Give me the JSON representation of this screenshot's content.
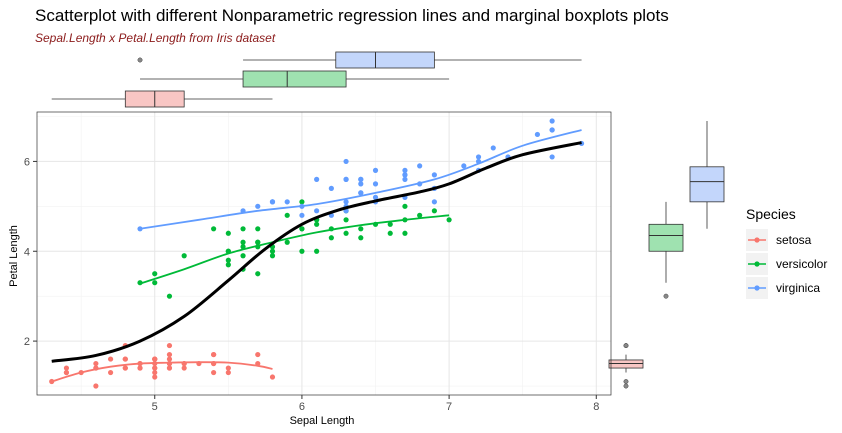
{
  "title": "Scatterplot with different Nonparametric regression lines and marginal boxplots plots",
  "subtitle": "Sepal.Length x Petal.Length from Iris dataset",
  "chart_data": {
    "type": "scatter",
    "xlabel": "Sepal Length",
    "ylabel": "Petal Length",
    "xlim": [
      4.2,
      8.1
    ],
    "ylim": [
      0.8,
      7.1
    ],
    "xticks": [
      "5",
      "6",
      "7",
      "8"
    ],
    "yticks": [
      "2",
      "4",
      "6"
    ],
    "grid": true,
    "legend": {
      "title": "Species",
      "position": "right"
    },
    "series": [
      {
        "name": "setosa",
        "color": "#F8766D",
        "points": [
          [
            5.1,
            1.4
          ],
          [
            4.9,
            1.4
          ],
          [
            4.7,
            1.3
          ],
          [
            4.6,
            1.5
          ],
          [
            5.0,
            1.4
          ],
          [
            5.4,
            1.7
          ],
          [
            4.6,
            1.4
          ],
          [
            5.0,
            1.5
          ],
          [
            4.4,
            1.4
          ],
          [
            4.9,
            1.5
          ],
          [
            5.4,
            1.5
          ],
          [
            4.8,
            1.6
          ],
          [
            4.8,
            1.4
          ],
          [
            4.3,
            1.1
          ],
          [
            5.8,
            1.2
          ],
          [
            5.7,
            1.5
          ],
          [
            5.4,
            1.3
          ],
          [
            5.1,
            1.4
          ],
          [
            5.7,
            1.7
          ],
          [
            5.1,
            1.5
          ],
          [
            5.4,
            1.7
          ],
          [
            5.1,
            1.5
          ],
          [
            4.6,
            1.0
          ],
          [
            5.1,
            1.7
          ],
          [
            4.8,
            1.9
          ],
          [
            5.0,
            1.6
          ],
          [
            5.0,
            1.6
          ],
          [
            5.2,
            1.5
          ],
          [
            5.2,
            1.4
          ],
          [
            4.7,
            1.6
          ],
          [
            4.8,
            1.6
          ],
          [
            5.4,
            1.5
          ],
          [
            5.2,
            1.5
          ],
          [
            5.5,
            1.4
          ],
          [
            4.9,
            1.5
          ],
          [
            5.0,
            1.2
          ],
          [
            5.5,
            1.3
          ],
          [
            4.9,
            1.4
          ],
          [
            4.4,
            1.3
          ],
          [
            5.1,
            1.5
          ],
          [
            5.0,
            1.3
          ],
          [
            4.5,
            1.3
          ],
          [
            4.4,
            1.3
          ],
          [
            5.0,
            1.6
          ],
          [
            5.1,
            1.9
          ],
          [
            4.8,
            1.4
          ],
          [
            5.1,
            1.6
          ],
          [
            4.6,
            1.4
          ],
          [
            5.3,
            1.5
          ],
          [
            5.0,
            1.4
          ]
        ],
        "trend": [
          [
            4.3,
            1.1
          ],
          [
            4.5,
            1.3
          ],
          [
            4.7,
            1.43
          ],
          [
            4.9,
            1.5
          ],
          [
            5.1,
            1.52
          ],
          [
            5.3,
            1.53
          ],
          [
            5.5,
            1.52
          ],
          [
            5.7,
            1.45
          ],
          [
            5.8,
            1.38
          ]
        ]
      },
      {
        "name": "versicolor",
        "color": "#00BA38",
        "points": [
          [
            7.0,
            4.7
          ],
          [
            6.4,
            4.5
          ],
          [
            6.9,
            4.9
          ],
          [
            5.5,
            4.0
          ],
          [
            6.5,
            4.6
          ],
          [
            5.7,
            4.5
          ],
          [
            6.3,
            4.7
          ],
          [
            4.9,
            3.3
          ],
          [
            6.6,
            4.6
          ],
          [
            5.2,
            3.9
          ],
          [
            5.0,
            3.5
          ],
          [
            5.9,
            4.2
          ],
          [
            6.0,
            4.0
          ],
          [
            6.1,
            4.7
          ],
          [
            5.6,
            3.6
          ],
          [
            6.7,
            4.4
          ],
          [
            5.6,
            4.5
          ],
          [
            5.8,
            4.1
          ],
          [
            6.2,
            4.5
          ],
          [
            5.6,
            3.9
          ],
          [
            5.9,
            4.8
          ],
          [
            6.1,
            4.0
          ],
          [
            6.3,
            4.9
          ],
          [
            6.1,
            4.7
          ],
          [
            6.4,
            4.3
          ],
          [
            6.6,
            4.4
          ],
          [
            6.8,
            4.8
          ],
          [
            6.7,
            5.0
          ],
          [
            6.0,
            4.5
          ],
          [
            5.7,
            3.5
          ],
          [
            5.5,
            3.8
          ],
          [
            5.5,
            3.7
          ],
          [
            5.8,
            3.9
          ],
          [
            6.0,
            5.1
          ],
          [
            5.4,
            4.5
          ],
          [
            6.0,
            4.5
          ],
          [
            6.7,
            4.7
          ],
          [
            6.3,
            4.4
          ],
          [
            5.6,
            4.1
          ],
          [
            5.5,
            4.0
          ],
          [
            5.5,
            4.4
          ],
          [
            6.1,
            4.6
          ],
          [
            5.8,
            4.0
          ],
          [
            5.0,
            3.3
          ],
          [
            5.6,
            4.2
          ],
          [
            5.7,
            4.2
          ],
          [
            5.7,
            4.2
          ],
          [
            6.2,
            4.3
          ],
          [
            5.1,
            3.0
          ],
          [
            5.7,
            4.1
          ]
        ],
        "trend": [
          [
            4.9,
            3.28
          ],
          [
            5.2,
            3.6
          ],
          [
            5.5,
            3.95
          ],
          [
            5.8,
            4.2
          ],
          [
            6.1,
            4.42
          ],
          [
            6.4,
            4.58
          ],
          [
            6.7,
            4.7
          ],
          [
            7.0,
            4.8
          ]
        ]
      },
      {
        "name": "virginica",
        "color": "#619CFF",
        "points": [
          [
            6.3,
            6.0
          ],
          [
            5.8,
            5.1
          ],
          [
            7.1,
            5.9
          ],
          [
            6.3,
            5.6
          ],
          [
            6.5,
            5.8
          ],
          [
            7.6,
            6.6
          ],
          [
            4.9,
            4.5
          ],
          [
            7.3,
            6.3
          ],
          [
            6.7,
            5.8
          ],
          [
            7.2,
            6.1
          ],
          [
            6.5,
            5.1
          ],
          [
            6.4,
            5.3
          ],
          [
            6.8,
            5.5
          ],
          [
            5.7,
            5.0
          ],
          [
            5.8,
            5.1
          ],
          [
            6.4,
            5.3
          ],
          [
            6.5,
            5.5
          ],
          [
            7.7,
            6.7
          ],
          [
            7.7,
            6.9
          ],
          [
            6.0,
            5.0
          ],
          [
            6.9,
            5.7
          ],
          [
            5.6,
            4.9
          ],
          [
            7.7,
            6.7
          ],
          [
            6.3,
            4.9
          ],
          [
            6.7,
            5.7
          ],
          [
            7.2,
            6.0
          ],
          [
            6.2,
            4.8
          ],
          [
            6.1,
            4.9
          ],
          [
            6.4,
            5.6
          ],
          [
            7.2,
            5.8
          ],
          [
            7.4,
            6.1
          ],
          [
            7.9,
            6.4
          ],
          [
            6.4,
            5.6
          ],
          [
            6.3,
            5.1
          ],
          [
            6.1,
            5.6
          ],
          [
            7.7,
            6.1
          ],
          [
            6.3,
            5.6
          ],
          [
            6.4,
            5.5
          ],
          [
            6.0,
            4.8
          ],
          [
            6.9,
            5.4
          ],
          [
            6.7,
            5.6
          ],
          [
            6.9,
            5.1
          ],
          [
            5.8,
            5.1
          ],
          [
            6.8,
            5.9
          ],
          [
            6.7,
            5.7
          ],
          [
            6.7,
            5.2
          ],
          [
            6.3,
            5.0
          ],
          [
            6.5,
            5.2
          ],
          [
            6.2,
            5.4
          ],
          [
            5.9,
            5.1
          ]
        ],
        "trend": [
          [
            4.9,
            4.5
          ],
          [
            5.3,
            4.7
          ],
          [
            5.7,
            4.9
          ],
          [
            6.1,
            5.05
          ],
          [
            6.5,
            5.3
          ],
          [
            6.9,
            5.6
          ],
          [
            7.2,
            5.95
          ],
          [
            7.5,
            6.35
          ],
          [
            7.9,
            6.7
          ]
        ]
      }
    ],
    "overall_trend": {
      "color": "#000000",
      "points": [
        [
          4.3,
          1.55
        ],
        [
          4.6,
          1.68
        ],
        [
          4.9,
          2.0
        ],
        [
          5.2,
          2.55
        ],
        [
          5.5,
          3.35
        ],
        [
          5.75,
          4.05
        ],
        [
          6.0,
          4.6
        ],
        [
          6.25,
          4.92
        ],
        [
          6.5,
          5.12
        ],
        [
          6.8,
          5.32
        ],
        [
          7.0,
          5.5
        ],
        [
          7.25,
          5.85
        ],
        [
          7.5,
          6.15
        ],
        [
          7.9,
          6.42
        ]
      ]
    },
    "marginal_boxplots_x": [
      {
        "name": "setosa",
        "min": 4.3,
        "q1": 4.8,
        "median": 5.0,
        "q3": 5.2,
        "max": 5.8,
        "outliers": []
      },
      {
        "name": "versicolor",
        "min": 4.9,
        "q1": 5.6,
        "median": 5.9,
        "q3": 6.3,
        "max": 7.0,
        "outliers": []
      },
      {
        "name": "virginica",
        "min": 5.6,
        "q1": 6.23,
        "median": 6.5,
        "q3": 6.9,
        "max": 7.9,
        "outliers": [
          4.9
        ]
      }
    ],
    "marginal_boxplots_y": [
      {
        "name": "setosa",
        "min": 1.3,
        "q1": 1.4,
        "median": 1.5,
        "q3": 1.58,
        "max": 1.7,
        "outliers": [
          1.0,
          1.1,
          1.9,
          1.9
        ]
      },
      {
        "name": "versicolor",
        "min": 3.3,
        "q1": 4.0,
        "median": 4.35,
        "q3": 4.6,
        "max": 5.1,
        "outliers": [
          3.0
        ]
      },
      {
        "name": "virginica",
        "min": 4.5,
        "q1": 5.1,
        "median": 5.55,
        "q3": 5.88,
        "max": 6.9,
        "outliers": []
      }
    ]
  }
}
